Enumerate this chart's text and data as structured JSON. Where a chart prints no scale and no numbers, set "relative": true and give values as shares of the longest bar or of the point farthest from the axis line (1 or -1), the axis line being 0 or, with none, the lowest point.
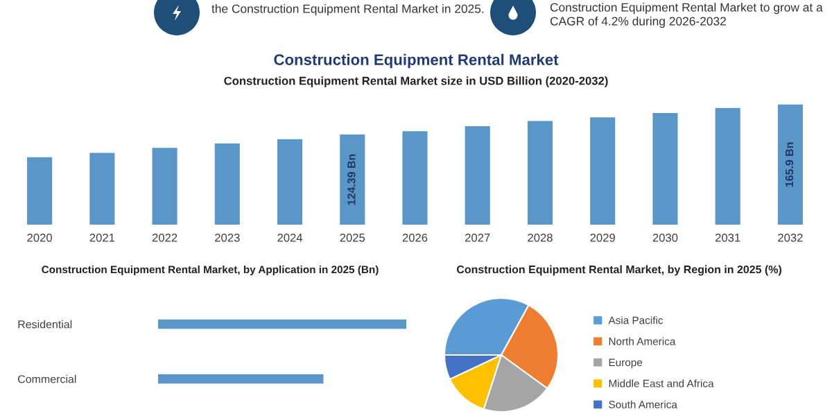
{
  "chart_data": [
    {
      "type": "other",
      "annotations": [
        "the Construction Equipment Rental Market in 2025.",
        "Construction Equipment Rental Market to grow at a CAGR of 4.2% during 2026-2032"
      ]
    },
    {
      "type": "bar",
      "title": "Construction Equipment Rental Market",
      "subtitle": "Construction Equipment Rental Market size in USD Billion (2020-2032)",
      "categories": [
        "2020",
        "2021",
        "2022",
        "2023",
        "2024",
        "2025",
        "2026",
        "2027",
        "2028",
        "2029",
        "2030",
        "2031",
        "2032"
      ],
      "values": [
        93,
        99,
        106,
        112,
        118,
        124.39,
        129,
        136,
        143,
        148,
        154,
        161,
        165.9
      ],
      "color": "#5b96c8",
      "value_labels": [
        null,
        null,
        null,
        null,
        null,
        "124.39 Bn",
        null,
        null,
        null,
        null,
        null,
        null,
        "165.9 Bn"
      ],
      "tick_labels": "x"
    },
    {
      "type": "bar",
      "orientation": "horizontal",
      "relative": true,
      "title": "Construction Equipment Rental Market, by Application in 2025 (Bn)",
      "categories": [
        "Residential",
        "Commercial"
      ],
      "values": [
        1,
        0.666
      ],
      "color": "#5b96c8"
    },
    {
      "type": "pie",
      "title": "Construction Equipment Rental Market, by Region in 2025 (%)",
      "categories": [
        "Asia Pacific",
        "North America",
        "Europe",
        "Middle East and Africa",
        "South America"
      ],
      "values": [
        33,
        27,
        20,
        13,
        7
      ],
      "colors": [
        "#5b9bd5",
        "#ed7d31",
        "#a5a5a5",
        "#ffc000",
        "#4472c4"
      ],
      "legend": "right"
    }
  ]
}
